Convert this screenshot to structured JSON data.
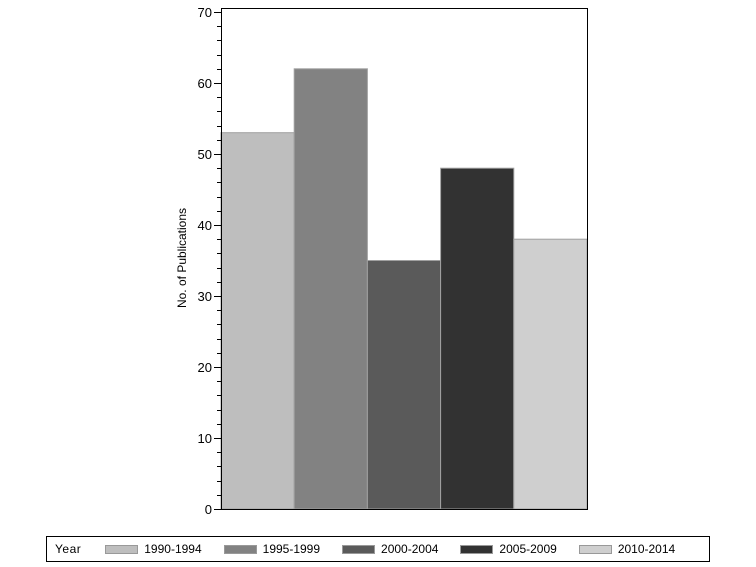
{
  "chart_data": {
    "type": "bar",
    "title": "",
    "xlabel": "",
    "ylabel": "No. of Publications",
    "ylim": [
      0,
      70
    ],
    "yticks": [
      0,
      10,
      20,
      30,
      40,
      50,
      60,
      70
    ],
    "grid": false,
    "legend_position": "bottom",
    "legend_title": "Year",
    "categories": [
      "1990-1994",
      "1995-1999",
      "2000-2004",
      "2005-2009",
      "2010-2014"
    ],
    "values": [
      53,
      62,
      35,
      48,
      38
    ],
    "colors": [
      "#bebebe",
      "#828282",
      "#5a5a5a",
      "#323232",
      "#cfcfcf"
    ]
  }
}
